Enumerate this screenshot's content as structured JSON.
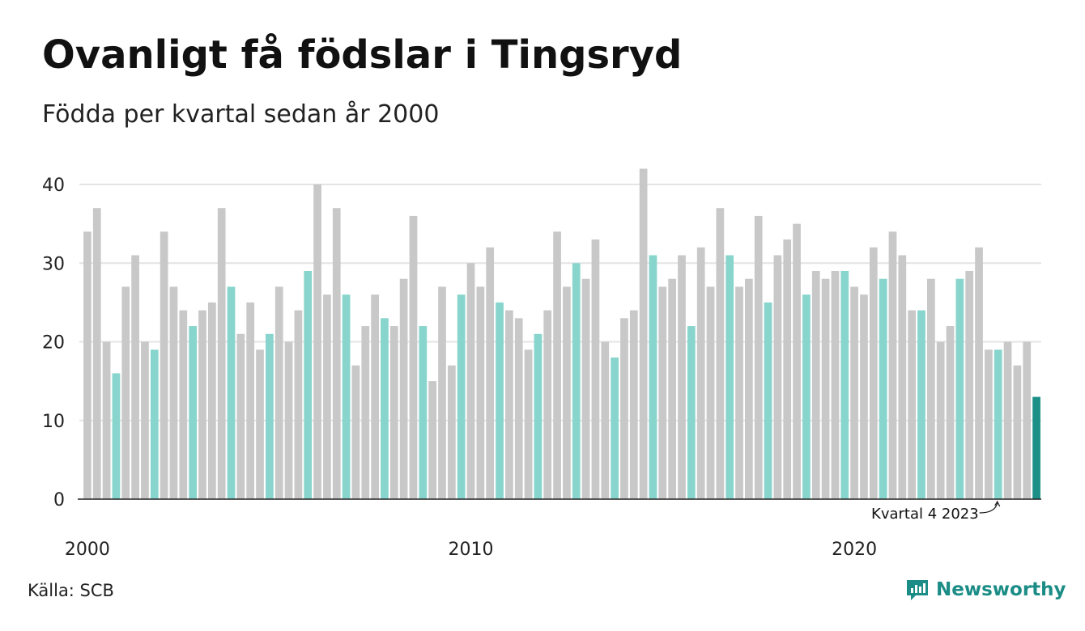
{
  "header": {
    "title": "Ovanligt få födslar i Tingsryd",
    "subtitle": "Födda per kvartal sedan år 2000"
  },
  "footer": {
    "source": "Källa: SCB",
    "brand": "Newsworthy",
    "brand_icon": "newsworthy-logo-icon"
  },
  "colors": {
    "bar_default": "#c8c8c8",
    "bar_q4": "#88d5cd",
    "bar_latest": "#1c9087",
    "gridline": "#e4e4e4",
    "axis": "#222222",
    "brand": "#1b8c86"
  },
  "chart_data": {
    "type": "bar",
    "x_tick_labels": [
      "2000",
      "2010",
      "2020"
    ],
    "y_ticks": [
      0,
      10,
      20,
      30,
      40
    ],
    "ylim": [
      0,
      42
    ],
    "grid": true,
    "annotation": "Kvartal 4 2023",
    "series": [
      {
        "x": [
          "2000 K1",
          "2000 K2",
          "2000 K3",
          "2000 K4",
          "2001 K1",
          "2001 K2",
          "2001 K3",
          "2001 K4",
          "2002 K1",
          "2002 K2",
          "2002 K3",
          "2002 K4",
          "2003 K1",
          "2003 K2",
          "2003 K3",
          "2003 K4",
          "2004 K1",
          "2004 K2",
          "2004 K3",
          "2004 K4",
          "2005 K1",
          "2005 K2",
          "2005 K3",
          "2005 K4",
          "2006 K1",
          "2006 K2",
          "2006 K3",
          "2006 K4",
          "2007 K1",
          "2007 K2",
          "2007 K3",
          "2007 K4",
          "2008 K1",
          "2008 K2",
          "2008 K3",
          "2008 K4",
          "2009 K1",
          "2009 K2",
          "2009 K3",
          "2009 K4",
          "2010 K1",
          "2010 K2",
          "2010 K3",
          "2010 K4",
          "2011 K1",
          "2011 K2",
          "2011 K3",
          "2011 K4",
          "2012 K1",
          "2012 K2",
          "2012 K3",
          "2012 K4",
          "2013 K1",
          "2013 K2",
          "2013 K3",
          "2013 K4",
          "2014 K1",
          "2014 K2",
          "2014 K3",
          "2014 K4",
          "2015 K1",
          "2015 K2",
          "2015 K3",
          "2015 K4",
          "2016 K1",
          "2016 K2",
          "2016 K3",
          "2016 K4",
          "2017 K1",
          "2017 K2",
          "2017 K3",
          "2017 K4",
          "2018 K1",
          "2018 K2",
          "2018 K3",
          "2018 K4",
          "2019 K1",
          "2019 K2",
          "2019 K3",
          "2019 K4",
          "2020 K1",
          "2020 K2",
          "2020 K3",
          "2020 K4",
          "2021 K1",
          "2021 K2",
          "2021 K3",
          "2021 K4",
          "2022 K1",
          "2022 K2",
          "2022 K3",
          "2022 K4",
          "2023 K1",
          "2023 K2",
          "2023 K3",
          "2023 K4",
          "2024 K1",
          "2024 K2",
          "2024 K3",
          "2024 K4"
        ],
        "values": [
          34,
          37,
          20,
          16,
          27,
          31,
          20,
          19,
          34,
          27,
          24,
          22,
          24,
          25,
          37,
          27,
          21,
          25,
          19,
          21,
          27,
          20,
          24,
          29,
          40,
          26,
          37,
          26,
          17,
          22,
          26,
          23,
          22,
          28,
          36,
          22,
          15,
          27,
          17,
          26,
          30,
          27,
          32,
          25,
          24,
          23,
          19,
          21,
          24,
          34,
          27,
          30,
          28,
          33,
          20,
          18,
          23,
          24,
          42,
          31,
          27,
          28,
          31,
          22,
          32,
          27,
          37,
          31,
          27,
          28,
          36,
          25,
          31,
          33,
          35,
          26,
          29,
          28,
          29,
          29,
          27,
          26,
          32,
          28,
          34,
          31,
          24,
          24,
          28,
          20,
          22,
          28,
          29,
          32,
          19,
          19,
          20,
          17,
          20,
          13
        ]
      }
    ]
  }
}
